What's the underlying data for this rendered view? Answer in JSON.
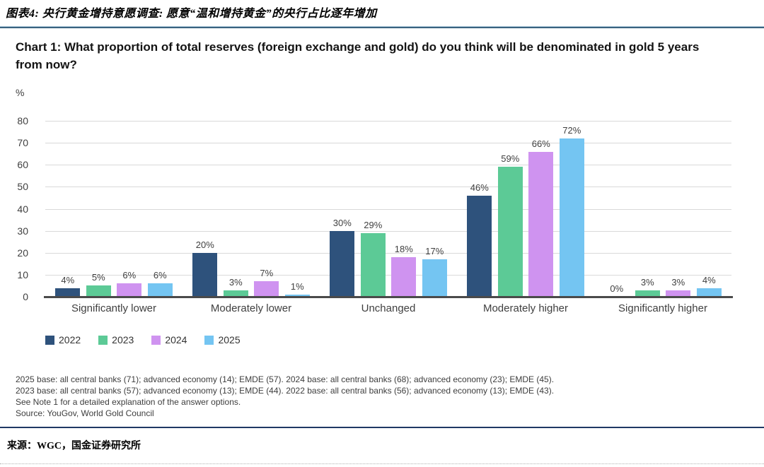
{
  "header": {
    "title": "图表4: 央行黄金增持意愿调查: 愿意“温和增持黄金”的央行占比逐年增加"
  },
  "chart_data": {
    "type": "bar",
    "title": "Chart 1: What proportion of total reserves (foreign exchange and gold) do you think will be denominated in gold 5 years from now?",
    "unit_label": "%",
    "categories": [
      "Significantly lower",
      "Moderately lower",
      "Unchanged",
      "Moderately higher",
      "Significantly higher"
    ],
    "series": [
      {
        "name": "2022",
        "color": "#2e527c",
        "values": [
          4,
          20,
          30,
          46,
          0
        ]
      },
      {
        "name": "2023",
        "color": "#5cca96",
        "values": [
          5,
          3,
          29,
          59,
          3
        ]
      },
      {
        "name": "2024",
        "color": "#cf93f0",
        "values": [
          6,
          7,
          18,
          66,
          3
        ]
      },
      {
        "name": "2025",
        "color": "#74c5f2",
        "values": [
          6,
          1,
          17,
          72,
          4
        ]
      }
    ],
    "ylim": [
      0,
      80
    ],
    "ytick_step": 10,
    "grid": true,
    "legend_position": "bottom-left",
    "data_label_format": "{v}%"
  },
  "footnotes": [
    "2025 base: all central banks (71); advanced economy (14); EMDE (57). 2024 base: all central banks (68); advanced economy (23); EMDE (45).",
    "2023 base: all central banks (57); advanced economy (13); EMDE (44). 2022 base: all central banks (56); advanced economy (13); EMDE (43).",
    "See Note 1 for a detailed explanation of the answer options.",
    "Source: YouGov, World Gold Council"
  ],
  "source_note": "来源：WGC，国金证券研究所",
  "colors": {
    "header_rule": "#3a6480",
    "bottom_rule": "#1f3864",
    "gridline": "#d9d9d9",
    "axis_line": "#4a4a4a"
  }
}
